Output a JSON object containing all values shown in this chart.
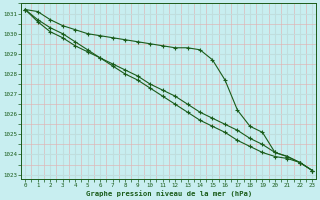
{
  "title": "Graphe pression niveau de la mer (hPa)",
  "bg_color": "#c8eef0",
  "grid_major_color": "#c0dede",
  "grid_minor_color": "#ddb8b8",
  "line_color": "#1a5c1a",
  "x_min": 0,
  "x_max": 23,
  "y_min": 1022.8,
  "y_max": 1031.5,
  "y_ticks": [
    1023,
    1024,
    1025,
    1026,
    1027,
    1028,
    1029,
    1030,
    1031
  ],
  "x_ticks": [
    0,
    1,
    2,
    3,
    4,
    5,
    6,
    7,
    8,
    9,
    10,
    11,
    12,
    13,
    14,
    15,
    16,
    17,
    18,
    19,
    20,
    21,
    22,
    23
  ],
  "series1": [
    1031.2,
    1031.1,
    1030.7,
    1030.4,
    1030.2,
    1030.0,
    1029.9,
    1029.8,
    1029.7,
    1029.6,
    1029.5,
    1029.4,
    1029.3,
    1029.3,
    1029.2,
    1028.7,
    1027.7,
    1026.2,
    1025.4,
    1025.1,
    1024.1,
    1023.9,
    1023.6,
    1023.2
  ],
  "series2": [
    1031.2,
    1030.6,
    1030.1,
    1029.8,
    1029.4,
    1029.1,
    1028.8,
    1028.5,
    1028.2,
    1027.9,
    1027.5,
    1027.2,
    1026.9,
    1026.5,
    1026.1,
    1025.8,
    1025.5,
    1025.2,
    1024.8,
    1024.5,
    1024.1,
    1023.9,
    1023.6,
    1023.2
  ],
  "series3": [
    1031.2,
    1030.7,
    1030.3,
    1030.0,
    1029.6,
    1029.2,
    1028.8,
    1028.4,
    1028.0,
    1027.7,
    1027.3,
    1026.9,
    1026.5,
    1026.1,
    1025.7,
    1025.4,
    1025.1,
    1024.7,
    1024.4,
    1024.1,
    1023.9,
    1023.8,
    1023.6,
    1023.2
  ]
}
